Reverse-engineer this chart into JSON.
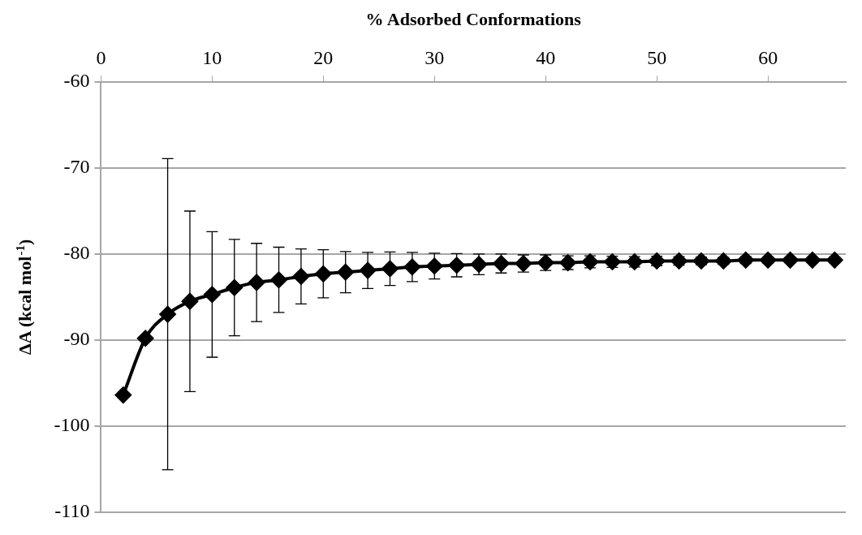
{
  "chart_data": {
    "type": "line",
    "xlabel": "% Adsorbed Conformations",
    "ylabel": "ΔA (kcal mol$^{-1}$)",
    "x": [
      2,
      4,
      6,
      8,
      10,
      12,
      14,
      16,
      18,
      20,
      22,
      24,
      26,
      28,
      30,
      32,
      34,
      36,
      38,
      40,
      42,
      44,
      46,
      48,
      50,
      52,
      54,
      56,
      58,
      60,
      62,
      64,
      66
    ],
    "series": [
      {
        "color": "#000000",
        "values": [
          -96.4,
          -89.8,
          -87.0,
          -85.5,
          -84.7,
          -83.9,
          -83.3,
          -83.0,
          -82.6,
          -82.3,
          -82.1,
          -81.9,
          -81.7,
          -81.5,
          -81.4,
          -81.3,
          -81.2,
          -81.1,
          -81.1,
          -81.0,
          -81.0,
          -80.9,
          -80.9,
          -80.9,
          -80.8,
          -80.8,
          -80.8,
          -80.8,
          -80.7,
          -80.7,
          -80.7,
          -80.7,
          -80.7
        ],
        "errors": [
          null,
          null,
          18.1,
          10.5,
          7.3,
          5.6,
          4.55,
          3.8,
          3.2,
          2.8,
          2.4,
          2.1,
          1.95,
          1.7,
          1.5,
          1.35,
          1.2,
          1.1,
          1.0,
          0.9,
          0.8,
          0.7,
          0.65,
          0.6,
          0.55,
          0.5,
          0.45,
          0.4,
          0.4,
          0.35,
          0.3,
          0.3,
          0.3
        ]
      }
    ],
    "xlim": [
      0,
      67
    ],
    "xticks": [
      0,
      10,
      20,
      30,
      40,
      50,
      60
    ],
    "ylim": [
      -110,
      -60
    ],
    "yticks": [
      -110,
      -100,
      -90,
      -80,
      -70,
      -60
    ],
    "grid": "y",
    "marker": "diamond",
    "line_style": "solid",
    "legend": false
  }
}
